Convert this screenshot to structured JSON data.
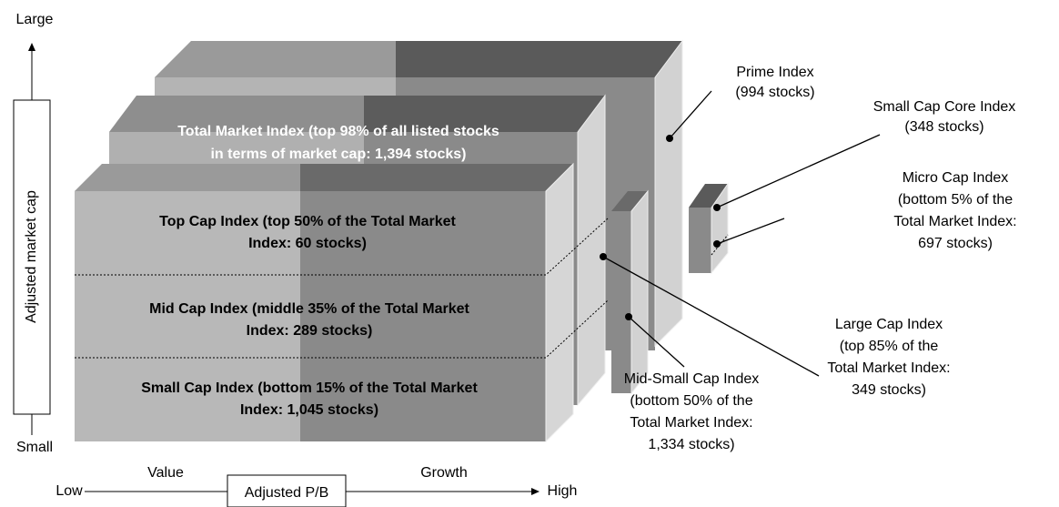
{
  "vertical_axis": {
    "top": "Large",
    "label": "Adjusted market cap",
    "bottom": "Small"
  },
  "horizontal_axis": {
    "left": "Low",
    "value": "Value",
    "label": "Adjusted P/B",
    "growth": "Growth",
    "right": "High"
  },
  "box_labels": {
    "total_market": [
      "Total Market Index (top 98% of all listed stocks",
      "in terms of market cap: 1,394 stocks)"
    ],
    "top_cap": [
      "Top Cap Index (top 50% of the Total Market",
      "Index: 60 stocks)"
    ],
    "mid_cap": [
      "Mid Cap Index (middle 35% of the Total Market",
      "Index: 289 stocks)"
    ],
    "small_cap": [
      "Small Cap Index (bottom 15% of the Total Market",
      "Index: 1,045 stocks)"
    ]
  },
  "callouts": {
    "prime": [
      "Prime Index",
      "(994 stocks)"
    ],
    "small_cap_core": [
      "Small Cap Core Index",
      "(348 stocks)"
    ],
    "micro_cap": [
      "Micro Cap Index",
      "(bottom 5% of the",
      "Total Market Index:",
      "697 stocks)"
    ],
    "large_cap": [
      "Large Cap Index",
      "(top 85% of the",
      "Total Market Index:",
      "349 stocks)"
    ],
    "mid_small_cap": [
      "Mid-Small Cap Index",
      "(bottom 50% of the",
      "Total Market Index:",
      "1,334 stocks)"
    ]
  }
}
